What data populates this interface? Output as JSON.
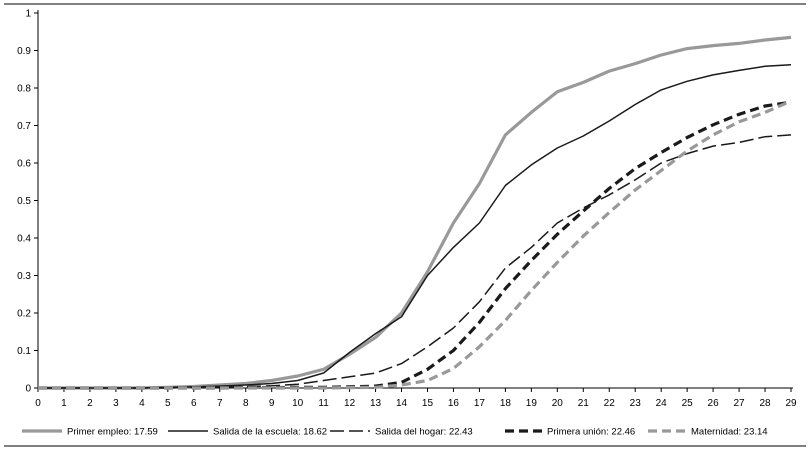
{
  "chart_data": {
    "type": "line",
    "title": "",
    "xlabel": "",
    "ylabel": "",
    "xlim": [
      0,
      29
    ],
    "ylim": [
      0,
      1
    ],
    "x": [
      0,
      1,
      2,
      3,
      4,
      5,
      6,
      7,
      8,
      9,
      10,
      11,
      12,
      13,
      14,
      15,
      16,
      17,
      18,
      19,
      20,
      21,
      22,
      23,
      24,
      25,
      26,
      27,
      28,
      29
    ],
    "x_tick_labels": [
      "0",
      "1",
      "2",
      "3",
      "4",
      "5",
      "6",
      "7",
      "8",
      "9",
      "10",
      "11",
      "12",
      "13",
      "14",
      "15",
      "16",
      "17",
      "18",
      "19",
      "20",
      "21",
      "22",
      "23",
      "24",
      "25",
      "26",
      "27",
      "28",
      "29"
    ],
    "y_ticks": [
      0,
      0.1,
      0.2,
      0.3,
      0.4,
      0.5,
      0.6,
      0.7,
      0.8,
      0.9,
      1
    ],
    "y_tick_labels": [
      "0",
      "0.1",
      "0.2",
      "0.3",
      "0.4",
      "0.5",
      "0.6",
      "0.7",
      "0.8",
      "0.9",
      "1"
    ],
    "legend_position": "bottom",
    "series": [
      {
        "name": "Primer empleo: 17.59",
        "color": "#999999",
        "style": "solid-thick",
        "values": [
          0,
          0,
          0,
          0,
          0,
          0.002,
          0.004,
          0.008,
          0.012,
          0.02,
          0.032,
          0.05,
          0.09,
          0.135,
          0.2,
          0.31,
          0.44,
          0.545,
          0.675,
          0.735,
          0.79,
          0.815,
          0.845,
          0.865,
          0.888,
          0.905,
          0.913,
          0.919,
          0.928,
          0.935
        ]
      },
      {
        "name": "Salida de la escuela: 18.62",
        "color": "#1a1a1a",
        "style": "solid-thin",
        "values": [
          0,
          0,
          0,
          0,
          0,
          0.002,
          0.003,
          0.005,
          0.008,
          0.012,
          0.02,
          0.04,
          0.095,
          0.145,
          0.19,
          0.3,
          0.375,
          0.44,
          0.54,
          0.595,
          0.64,
          0.672,
          0.712,
          0.756,
          0.795,
          0.818,
          0.835,
          0.847,
          0.858,
          0.862
        ]
      },
      {
        "name": "Salida del hogar: 22.43",
        "color": "#1a1a1a",
        "style": "long-dash-thin",
        "values": [
          0,
          0,
          0,
          0,
          0,
          0,
          0.002,
          0.003,
          0.004,
          0.006,
          0.01,
          0.02,
          0.03,
          0.04,
          0.065,
          0.11,
          0.16,
          0.23,
          0.32,
          0.375,
          0.44,
          0.48,
          0.515,
          0.555,
          0.6,
          0.625,
          0.645,
          0.655,
          0.67,
          0.675
        ]
      },
      {
        "name": "Primera unión: 22.46",
        "color": "#1a1a1a",
        "style": "dash-thick",
        "values": [
          0,
          0,
          0,
          0,
          0,
          0,
          0,
          0,
          0.001,
          0.001,
          0.002,
          0.002,
          0.003,
          0.005,
          0.015,
          0.05,
          0.1,
          0.175,
          0.265,
          0.34,
          0.41,
          0.472,
          0.532,
          0.585,
          0.628,
          0.668,
          0.702,
          0.73,
          0.752,
          0.762
        ]
      },
      {
        "name": "Maternidad: 23.14",
        "color": "#999999",
        "style": "dash-thick",
        "values": [
          0,
          0,
          0,
          0,
          0,
          0,
          0,
          0,
          0,
          0,
          0,
          0,
          0.001,
          0.002,
          0.008,
          0.02,
          0.052,
          0.11,
          0.18,
          0.26,
          0.335,
          0.405,
          0.468,
          0.528,
          0.58,
          0.632,
          0.675,
          0.71,
          0.735,
          0.765
        ]
      }
    ]
  }
}
